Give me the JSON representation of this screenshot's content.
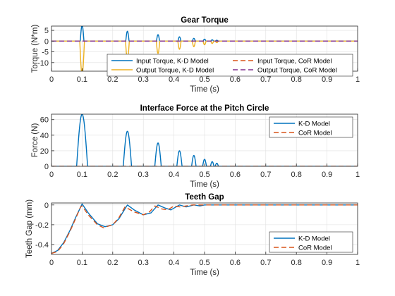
{
  "colors": {
    "blue": "#0072BD",
    "orange": "#D95319",
    "yellow": "#EDB120",
    "purple": "#7E2F8E"
  },
  "chart_data": [
    {
      "type": "line",
      "title": "Gear Torque",
      "xlabel": "Time (s)",
      "ylabel": "Torque (N*m)",
      "xlim": [
        0,
        1
      ],
      "ylim": [
        -14,
        7
      ],
      "xticks": [
        0,
        0.1,
        0.2,
        0.3,
        0.4,
        0.5,
        0.6,
        0.7,
        0.8,
        0.9,
        1
      ],
      "xtick_labels": [
        "0",
        "0.1",
        "0.2",
        "0.3",
        "0.4",
        "0.5",
        "0.6",
        "0.7",
        "0.8",
        "0.9",
        "1"
      ],
      "yticks": [
        -10,
        -5,
        0,
        5
      ],
      "ytick_labels": [
        "-10",
        "-5",
        "0",
        "5"
      ],
      "grid": true,
      "legend": {
        "location": "bottom-right",
        "columns": 2
      },
      "series": [
        {
          "name": "Input Torque, K-D Model",
          "color": "#0072BD",
          "style": "solid",
          "impacts": [
            [
              0.1,
              7.5
            ],
            [
              0.248,
              4.6
            ],
            [
              0.348,
              3.0
            ],
            [
              0.418,
              2.0
            ],
            [
              0.465,
              1.3
            ],
            [
              0.5,
              0.9
            ],
            [
              0.525,
              0.6
            ],
            [
              0.54,
              0.4
            ]
          ]
        },
        {
          "name": "Output Torque, K-D Model",
          "color": "#EDB120",
          "style": "solid",
          "impacts": [
            [
              0.1,
              -15.5
            ],
            [
              0.248,
              -8.5
            ],
            [
              0.348,
              -5.7
            ],
            [
              0.418,
              -3.8
            ],
            [
              0.465,
              -2.6
            ],
            [
              0.5,
              -1.7
            ],
            [
              0.525,
              -1.1
            ],
            [
              0.54,
              -0.7
            ]
          ]
        },
        {
          "name": "Input Torque, CoR Model",
          "color": "#D95319",
          "style": "dashed",
          "values": [
            [
              0,
              0
            ],
            [
              1,
              0
            ]
          ]
        },
        {
          "name": "Output Torque, CoR Model",
          "color": "#7E2F8E",
          "style": "dashed",
          "values": [
            [
              0,
              0
            ],
            [
              1,
              0
            ]
          ]
        }
      ]
    },
    {
      "type": "line",
      "title": "Interface Force at the Pitch Circle",
      "xlabel": "Time (s)",
      "ylabel": "Force (N)",
      "xlim": [
        0,
        1
      ],
      "ylim": [
        0,
        67
      ],
      "xticks": [
        0,
        0.1,
        0.2,
        0.3,
        0.4,
        0.5,
        0.6,
        0.7,
        0.8,
        0.9,
        1
      ],
      "xtick_labels": [
        "0",
        "0.1",
        "0.2",
        "0.3",
        "0.4",
        "0.5",
        "0.6",
        "0.7",
        "0.8",
        "0.9",
        "1"
      ],
      "yticks": [
        0,
        20,
        40,
        60
      ],
      "ytick_labels": [
        "0",
        "20",
        "40",
        "60"
      ],
      "grid": true,
      "legend": {
        "location": "top-right",
        "columns": 1
      },
      "series": [
        {
          "name": "K-D Model",
          "color": "#0072BD",
          "style": "solid",
          "impacts": [
            [
              0.1,
              67
            ],
            [
              0.248,
              45
            ],
            [
              0.348,
              30
            ],
            [
              0.418,
              20
            ],
            [
              0.465,
              14
            ],
            [
              0.5,
              9
            ],
            [
              0.525,
              6
            ],
            [
              0.54,
              4
            ]
          ]
        },
        {
          "name": "CoR Model",
          "color": "#D95319",
          "style": "dashed",
          "values": [
            [
              0,
              0
            ],
            [
              1,
              0
            ]
          ]
        }
      ]
    },
    {
      "type": "line",
      "title": "Teeth Gap",
      "xlabel": "Time (s)",
      "ylabel": "Teeth Gap (mm)",
      "xlim": [
        0,
        1
      ],
      "ylim": [
        -0.5,
        0.02
      ],
      "xticks": [
        0,
        0.1,
        0.2,
        0.3,
        0.4,
        0.5,
        0.6,
        0.7,
        0.8,
        0.9,
        1
      ],
      "xtick_labels": [
        "0",
        "0.1",
        "0.2",
        "0.3",
        "0.4",
        "0.5",
        "0.6",
        "0.7",
        "0.8",
        "0.9",
        "1"
      ],
      "yticks": [
        -0.4,
        -0.2,
        0
      ],
      "ytick_labels": [
        "-0.4",
        "-0.2",
        "0"
      ],
      "grid": true,
      "legend": {
        "location": "bottom-right",
        "columns": 1
      },
      "series": [
        {
          "name": "K-D Model",
          "color": "#0072BD",
          "style": "solid",
          "values": [
            [
              0,
              -0.49
            ],
            [
              0.02,
              -0.46
            ],
            [
              0.04,
              -0.38
            ],
            [
              0.06,
              -0.26
            ],
            [
              0.08,
              -0.12
            ],
            [
              0.1,
              0.01
            ],
            [
              0.12,
              -0.08
            ],
            [
              0.15,
              -0.19
            ],
            [
              0.175,
              -0.22
            ],
            [
              0.2,
              -0.2
            ],
            [
              0.22,
              -0.14
            ],
            [
              0.248,
              0.0
            ],
            [
              0.27,
              -0.05
            ],
            [
              0.3,
              -0.1
            ],
            [
              0.325,
              -0.08
            ],
            [
              0.348,
              0.0
            ],
            [
              0.37,
              -0.03
            ],
            [
              0.39,
              -0.05
            ],
            [
              0.418,
              0.0
            ],
            [
              0.44,
              -0.02
            ],
            [
              0.465,
              0.0
            ],
            [
              0.485,
              -0.01
            ],
            [
              0.5,
              0.0
            ],
            [
              0.55,
              0.0
            ],
            [
              1,
              0.0
            ]
          ]
        },
        {
          "name": "CoR Model",
          "color": "#D95319",
          "style": "dashed",
          "values": [
            [
              0,
              -0.49
            ],
            [
              0.02,
              -0.47
            ],
            [
              0.04,
              -0.39
            ],
            [
              0.06,
              -0.27
            ],
            [
              0.08,
              -0.13
            ],
            [
              0.095,
              -0.02
            ],
            [
              0.1,
              -0.01
            ],
            [
              0.12,
              -0.1
            ],
            [
              0.15,
              -0.2
            ],
            [
              0.17,
              -0.23
            ],
            [
              0.2,
              -0.2
            ],
            [
              0.22,
              -0.13
            ],
            [
              0.24,
              -0.02
            ],
            [
              0.27,
              -0.07
            ],
            [
              0.3,
              -0.1
            ],
            [
              0.32,
              -0.07
            ],
            [
              0.338,
              -0.01
            ],
            [
              0.36,
              -0.04
            ],
            [
              0.38,
              -0.05
            ],
            [
              0.4,
              -0.01
            ],
            [
              0.42,
              -0.02
            ],
            [
              0.44,
              -0.01
            ],
            [
              0.46,
              0.0
            ],
            [
              0.5,
              0.0
            ],
            [
              1,
              0.0
            ]
          ]
        }
      ]
    }
  ]
}
